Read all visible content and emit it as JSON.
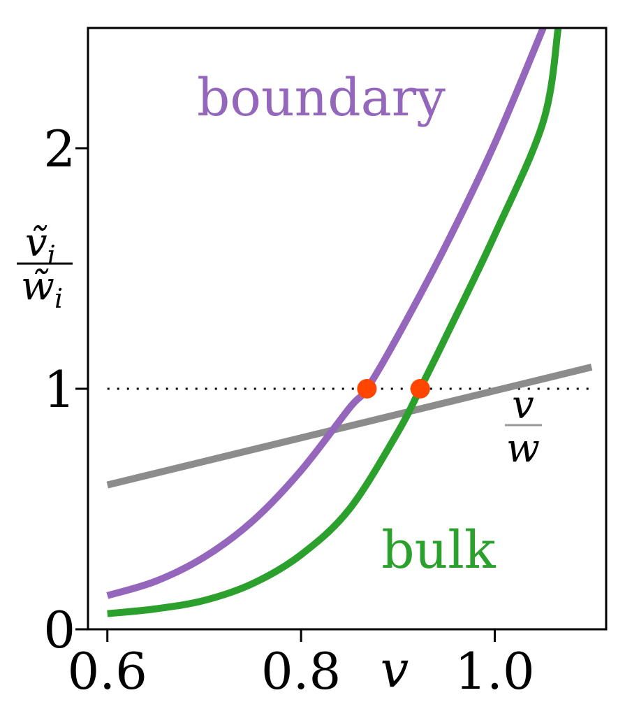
{
  "chart_data": {
    "type": "line",
    "xlabel": "v",
    "ylabel": {
      "numerator": "ṽ",
      "numerator_sub": "i",
      "denominator": "w̃",
      "denominator_sub": "i"
    },
    "xlim": [
      0.58,
      1.115
    ],
    "ylim": [
      0,
      2.5
    ],
    "x_ticks": [
      0.6,
      0.8,
      1.0
    ],
    "x_tick_labels": [
      "0.6",
      "0.8",
      "1.0"
    ],
    "y_ticks": [
      0,
      1,
      2
    ],
    "y_tick_labels": [
      "0",
      "1",
      "2"
    ],
    "grid": false,
    "reference_line": {
      "y": 1,
      "style": "dotted",
      "color": "#000000"
    },
    "series": [
      {
        "name": "boundary",
        "color": "#9467bd",
        "points": [
          [
            0.6,
            0.14
          ],
          [
            0.65,
            0.2
          ],
          [
            0.7,
            0.3
          ],
          [
            0.75,
            0.45
          ],
          [
            0.8,
            0.66
          ],
          [
            0.85,
            0.92
          ],
          [
            0.868,
            1.0
          ],
          [
            0.9,
            1.22
          ],
          [
            0.95,
            1.6
          ],
          [
            1.0,
            2.02
          ],
          [
            1.05,
            2.5
          ]
        ]
      },
      {
        "name": "bulk",
        "color": "#2ca02c",
        "points": [
          [
            0.6,
            0.065
          ],
          [
            0.65,
            0.085
          ],
          [
            0.7,
            0.12
          ],
          [
            0.75,
            0.19
          ],
          [
            0.8,
            0.31
          ],
          [
            0.85,
            0.5
          ],
          [
            0.9,
            0.82
          ],
          [
            0.923,
            1.0
          ],
          [
            0.95,
            1.22
          ],
          [
            1.0,
            1.64
          ],
          [
            1.05,
            2.11
          ],
          [
            1.0655,
            2.5
          ]
        ]
      },
      {
        "name": "v/w",
        "color": "#8c8c8c",
        "points": [
          [
            0.6,
            0.6
          ],
          [
            1.1,
            1.09
          ]
        ]
      }
    ],
    "intersection_points": {
      "color": "#ff4500",
      "points": [
        [
          0.868,
          1.0
        ],
        [
          0.923,
          1.0
        ]
      ]
    },
    "annotations": {
      "boundary": "boundary",
      "bulk": "bulk",
      "ratio_numerator": "v",
      "ratio_denominator": "w"
    }
  }
}
